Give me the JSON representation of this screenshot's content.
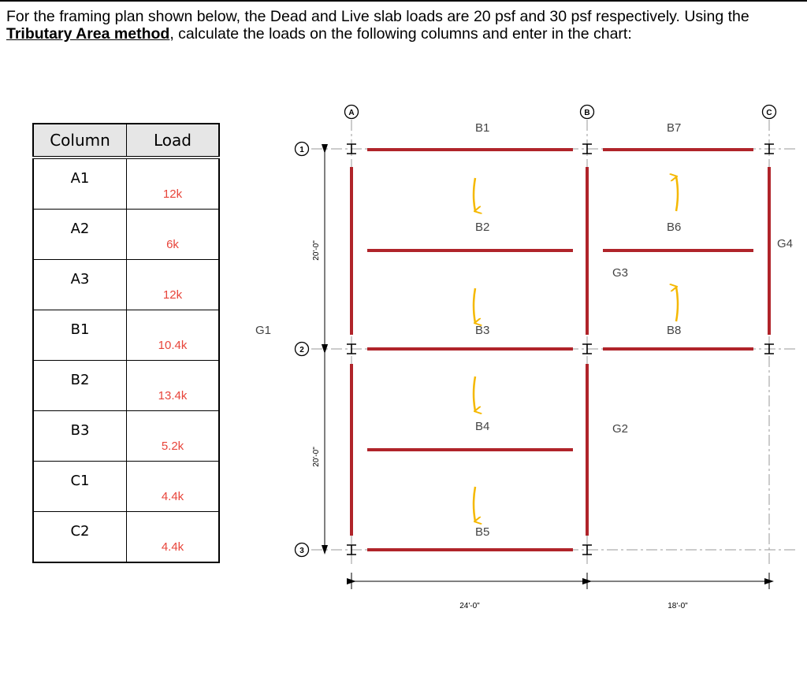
{
  "problem": {
    "part1": "For the framing plan shown below, the Dead and Live slab loads are 20 psf and 30 psf respectively. Using the ",
    "emphasis": "Tributary Area method",
    "part2": ", calculate the loads on the following columns and enter in the chart:"
  },
  "table": {
    "headers": {
      "column": "Column",
      "load": "Load"
    },
    "rows": [
      {
        "column": "A1",
        "load": "12k"
      },
      {
        "column": "A2",
        "load": "6k"
      },
      {
        "column": "A3",
        "load": "12k"
      },
      {
        "column": "B1",
        "load": "10.4k"
      },
      {
        "column": "B2",
        "load": "13.4k"
      },
      {
        "column": "B3",
        "load": "5.2k"
      },
      {
        "column": "C1",
        "load": "4.4k"
      },
      {
        "column": "C2",
        "load": "4.4k"
      }
    ]
  },
  "plan": {
    "grid_columns": [
      "A",
      "B",
      "C"
    ],
    "grid_rows": [
      "1",
      "2",
      "3"
    ],
    "beams": [
      "B1",
      "B2",
      "B3",
      "B4",
      "B5",
      "B6",
      "B7",
      "B8"
    ],
    "girders": [
      "G1",
      "G2",
      "G3",
      "G4"
    ],
    "dimensions": {
      "span_ab": "24'-0\"",
      "span_bc": "18'-0\"",
      "span_12": "20'-0\"",
      "span_23": "20'-0\""
    },
    "colors": {
      "member": "#b0242a",
      "arrow": "#f5b800",
      "label": "#444444"
    }
  }
}
